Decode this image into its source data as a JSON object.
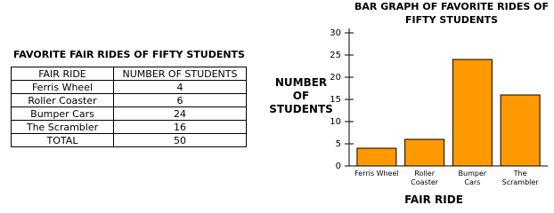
{
  "table": {
    "title": "FAVORITE FAIR RIDES OF FIFTY STUDENTS",
    "header": [
      "FAIR RIDE",
      "NUMBER OF STUDENTS"
    ],
    "rows": [
      [
        "Ferris Wheel",
        4
      ],
      [
        "Roller Coaster",
        6
      ],
      [
        "Bumper Cars",
        24
      ],
      [
        "The Scrambler",
        16
      ]
    ],
    "total": [
      "TOTAL",
      50
    ]
  },
  "chart_data": {
    "type": "bar",
    "title": "BAR GRAPH OF FAVORITE RIDES OF FIFTY STUDENTS",
    "x_label": "FAIR RIDE",
    "y_label": "NUMBER OF STUDENTS",
    "categories": [
      "Ferris Wheel",
      "Roller Coaster",
      "Bumper Cars",
      "The Scrambler"
    ],
    "values": [
      4,
      6,
      24,
      16
    ],
    "color": "#ff9900",
    "ylim": [
      0,
      30
    ],
    "yticks": [
      0,
      5,
      10,
      15,
      20,
      25,
      30
    ],
    "grid": false
  }
}
